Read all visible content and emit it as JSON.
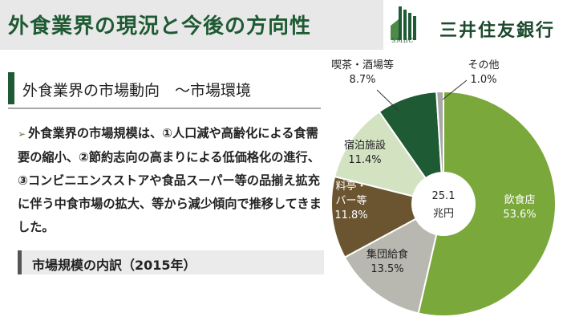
{
  "header": {
    "title": "外食業界の現況と今後の方向性"
  },
  "brand": {
    "logo_text": "SMBC",
    "bank_name": "三井住友銀行",
    "color": "#1e5a33"
  },
  "section": {
    "title": "外食業界の市場動向　～市場環境"
  },
  "body": {
    "bullet": "➢",
    "text": "外食業界の市場規模は、①人口減や高齢化による食需要の縮小、②節約志向の高まりによる低価格化の進行、③コンビニエンスストアや食品スーパー等の品揃え拡充に伴う中食市場の拡大、等から減少傾向で推移してきました。"
  },
  "subsection": {
    "title": "市場規模の内訳（2015年）"
  },
  "chart_data": {
    "type": "pie",
    "center_label": [
      "25.1",
      "兆円"
    ],
    "slices": [
      {
        "label": "飲食店",
        "value": 53.6,
        "pct": "53.6%",
        "color": "#7aa83a"
      },
      {
        "label": "集団給食",
        "value": 13.5,
        "pct": "13.5%",
        "color": "#b8b8b0"
      },
      {
        "label": "料亭・バー等",
        "label_lines": [
          "料亭・",
          "バー等"
        ],
        "value": 11.8,
        "pct": "11.8%",
        "color": "#6b5530"
      },
      {
        "label": "宿泊施設",
        "value": 11.4,
        "pct": "11.4%",
        "color": "#d3e3c2"
      },
      {
        "label": "喫茶・酒場等",
        "value": 8.7,
        "pct": "8.7%",
        "color": "#1e5a33"
      },
      {
        "label": "その他",
        "value": 1.0,
        "pct": "1.0%",
        "color": "#a8a8a8"
      }
    ]
  }
}
